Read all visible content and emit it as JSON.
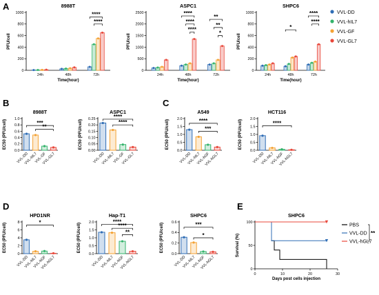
{
  "figure": {
    "panel_labels": [
      "A",
      "B",
      "C",
      "D",
      "E"
    ],
    "legend_a": [
      {
        "name": "VVL-DD",
        "color": "#2f6db5"
      },
      {
        "name": "VVL-hIL7",
        "color": "#33b36b"
      },
      {
        "name": "VVL-GF",
        "color": "#f4a233"
      },
      {
        "name": "VVL-GL7",
        "color": "#e8473a"
      }
    ]
  },
  "chart_data": [
    {
      "id": "A1",
      "panel": "A",
      "type": "bar",
      "title": "8988T",
      "xlabel": "Time(hour)",
      "ylabel": "PFU/cell",
      "categories": [
        "24h",
        "48h",
        "72h"
      ],
      "ylim": [
        0,
        1000
      ],
      "yticks": [
        0,
        200,
        400,
        600,
        800,
        1000
      ],
      "ytick_labels": [
        "0",
        "200",
        "400",
        "600",
        "800",
        "1000"
      ],
      "series": [
        {
          "name": "VVL-DD",
          "color": "#2f6db5",
          "values": [
            5,
            25,
            60
          ]
        },
        {
          "name": "VVL-hIL7",
          "color": "#33b36b",
          "values": [
            6,
            30,
            450
          ]
        },
        {
          "name": "VVL-GF",
          "color": "#f4a233",
          "values": [
            8,
            35,
            550
          ]
        },
        {
          "name": "VVL-GL7",
          "color": "#e8473a",
          "values": [
            10,
            50,
            650
          ]
        }
      ],
      "significance": [
        {
          "label": "****",
          "from": [
            2,
            0
          ],
          "to": [
            2,
            3
          ],
          "y": 920
        },
        {
          "label": "****",
          "from": [
            2,
            1
          ],
          "to": [
            2,
            3
          ],
          "y": 800
        }
      ]
    },
    {
      "id": "A2",
      "panel": "A",
      "type": "bar",
      "title": "ASPC1",
      "xlabel": "Time(hour)",
      "ylabel": "PFU/cell",
      "categories": [
        "24h",
        "48h",
        "72h"
      ],
      "ylim": [
        0,
        2500
      ],
      "yticks": [
        0,
        500,
        1000,
        1500,
        2000,
        2500
      ],
      "ytick_labels": [
        "0",
        "500",
        "1000",
        "1500",
        "2000",
        "2500"
      ],
      "series": [
        {
          "name": "VVL-DD",
          "color": "#2f6db5",
          "values": [
            100,
            200,
            250
          ]
        },
        {
          "name": "VVL-hIL7",
          "color": "#33b36b",
          "values": [
            120,
            250,
            300
          ]
        },
        {
          "name": "VVL-GF",
          "color": "#f4a233",
          "values": [
            150,
            300,
            450
          ]
        },
        {
          "name": "VVL-GL7",
          "color": "#e8473a",
          "values": [
            450,
            1350,
            1050
          ]
        }
      ],
      "significance": [
        {
          "label": "****",
          "from": [
            1,
            0
          ],
          "to": [
            1,
            3
          ],
          "y": 2350
        },
        {
          "label": "****",
          "from": [
            1,
            1
          ],
          "to": [
            1,
            3
          ],
          "y": 2000
        },
        {
          "label": "****",
          "from": [
            1,
            2
          ],
          "to": [
            1,
            3
          ],
          "y": 1650
        },
        {
          "label": "**",
          "from": [
            2,
            0
          ],
          "to": [
            2,
            3
          ],
          "y": 2200
        },
        {
          "label": "**",
          "from": [
            2,
            1
          ],
          "to": [
            2,
            3
          ],
          "y": 1850
        },
        {
          "label": "*",
          "from": [
            2,
            2
          ],
          "to": [
            2,
            3
          ],
          "y": 1500
        }
      ]
    },
    {
      "id": "A3",
      "panel": "A",
      "type": "bar",
      "title": "SHPC6",
      "xlabel": "Time(hour)",
      "ylabel": "PFU/cell",
      "categories": [
        "24h",
        "48h",
        "72h"
      ],
      "ylim": [
        0,
        1000
      ],
      "yticks": [
        0,
        200,
        400,
        600,
        800,
        1000
      ],
      "ytick_labels": [
        "0",
        "200",
        "400",
        "600",
        "800",
        "1000"
      ],
      "series": [
        {
          "name": "VVL-DD",
          "color": "#2f6db5",
          "values": [
            80,
            70,
            100
          ]
        },
        {
          "name": "VVL-hIL7",
          "color": "#33b36b",
          "values": [
            90,
            110,
            130
          ]
        },
        {
          "name": "VVL-GF",
          "color": "#f4a233",
          "values": [
            100,
            220,
            150
          ]
        },
        {
          "name": "VVL-GL7",
          "color": "#e8473a",
          "values": [
            120,
            240,
            450
          ]
        }
      ],
      "significance": [
        {
          "label": "*",
          "from": [
            1,
            0
          ],
          "to": [
            1,
            3
          ],
          "y": 700
        },
        {
          "label": "****",
          "from": [
            2,
            0
          ],
          "to": [
            2,
            3
          ],
          "y": 940
        },
        {
          "label": "****",
          "from": [
            2,
            1
          ],
          "to": [
            2,
            3
          ],
          "y": 800
        }
      ]
    },
    {
      "id": "B1",
      "panel": "B",
      "type": "bar",
      "title": "8988T",
      "xlabel": "",
      "ylabel": "EC50 (PFU/cell)",
      "categories": [
        "VVL-DD",
        "VVL-hIL7",
        "VVL-GF",
        "VVL-GL7"
      ],
      "colors": [
        "#2f6db5",
        "#f4a233",
        "#33b36b",
        "#e8473a"
      ],
      "ylim": [
        0,
        1.0
      ],
      "yticks": [
        0,
        0.2,
        0.4,
        0.6,
        0.8,
        1.0
      ],
      "ytick_labels": [
        "0.0",
        "0.2",
        "0.4",
        "0.6",
        "0.8",
        "1.0"
      ],
      "values": [
        0.52,
        0.48,
        0.13,
        0.09
      ],
      "significance": [
        {
          "label": "***",
          "from": 0,
          "to": 3,
          "y": 0.78
        },
        {
          "label": "**",
          "from": 1,
          "to": 3,
          "y": 0.66
        }
      ]
    },
    {
      "id": "B2",
      "panel": "B",
      "type": "bar",
      "title": "ASPC1",
      "xlabel": "",
      "ylabel": "EC50 (PFU/cell)",
      "categories": [
        "VVL-DD",
        "VVL-hIL7",
        "VVL-GF",
        "VVL-GL7"
      ],
      "colors": [
        "#2f6db5",
        "#f4a233",
        "#33b36b",
        "#e8473a"
      ],
      "ylim": [
        0,
        0.25
      ],
      "yticks": [
        0,
        0.05,
        0.1,
        0.15,
        0.2,
        0.25
      ],
      "ytick_labels": [
        "0.00",
        "0.05",
        "0.10",
        "0.15",
        "0.20",
        "0.25"
      ],
      "values": [
        0.215,
        0.16,
        0.045,
        0.025
      ],
      "significance": [
        {
          "label": "****",
          "from": 0,
          "to": 3,
          "y": 0.245
        },
        {
          "label": "****",
          "from": 1,
          "to": 3,
          "y": 0.2
        }
      ]
    },
    {
      "id": "C1",
      "panel": "C",
      "type": "bar",
      "title": "A549",
      "xlabel": "",
      "ylabel": "EC50 (PFU/cell)",
      "categories": [
        "VVL-DD",
        "VVL-hIL7",
        "VVL-hGF",
        "VVL-hGL7"
      ],
      "colors": [
        "#2f6db5",
        "#f4a233",
        "#33b36b",
        "#e8473a"
      ],
      "ylim": [
        0,
        2.0
      ],
      "yticks": [
        0,
        0.5,
        1.0,
        1.5,
        2.0
      ],
      "ytick_labels": [
        "0.0",
        "0.5",
        "1.0",
        "1.5",
        "2.0"
      ],
      "values": [
        1.3,
        0.85,
        0.35,
        0.2
      ],
      "significance": [
        {
          "label": "****",
          "from": 0,
          "to": 3,
          "y": 1.7
        },
        {
          "label": "***",
          "from": 1,
          "to": 3,
          "y": 1.2
        }
      ]
    },
    {
      "id": "C2",
      "panel": "C",
      "type": "bar",
      "title": "HCT116",
      "xlabel": "",
      "ylabel": "EC50 (PFU/cell)",
      "categories": [
        "VVL-DD",
        "VVL-hIL7",
        "VVL-hGF",
        "VVL-hGL7"
      ],
      "colors": [
        "#2f6db5",
        "#f4a233",
        "#33b36b",
        "#e8473a"
      ],
      "ylim": [
        0,
        2.0
      ],
      "yticks": [
        0,
        0.5,
        1.0,
        1.5,
        2.0
      ],
      "ytick_labels": [
        "0.0",
        "0.5",
        "1.0",
        "1.5",
        "2.0"
      ],
      "values": [
        0.92,
        0.15,
        0.06,
        0.03
      ],
      "significance": [
        {
          "label": "****",
          "from": 0,
          "to": 3,
          "y": 1.55
        }
      ]
    },
    {
      "id": "D1",
      "panel": "D",
      "type": "bar",
      "title": "HPD1NR",
      "xlabel": "",
      "ylabel": "EC50 (PFU/cell)",
      "categories": [
        "VVL-DD",
        "VVL-hIL7",
        "VVL-hGF",
        "VVL-hGL7"
      ],
      "colors": [
        "#2f6db5",
        "#f4a233",
        "#33b36b",
        "#e8473a"
      ],
      "ylim": [
        0,
        8
      ],
      "yticks": [
        0,
        2,
        4,
        6,
        8
      ],
      "ytick_labels": [
        "0",
        "2",
        "4",
        "6",
        "8"
      ],
      "values": [
        3.5,
        0.6,
        0.65,
        0.1
      ],
      "significance": [
        {
          "label": "*",
          "from": 0,
          "to": 3,
          "y": 7.2
        }
      ]
    },
    {
      "id": "D2",
      "panel": "D",
      "type": "bar",
      "title": "Hap-T1",
      "xlabel": "",
      "ylabel": "EC50 (PFU/cell)",
      "categories": [
        "VVL-DD",
        "VVL-hIL7",
        "VVL-hGF",
        "VVL-hGL7"
      ],
      "colors": [
        "#2f6db5",
        "#f4a233",
        "#33b36b",
        "#e8473a"
      ],
      "ylim": [
        0,
        2.0
      ],
      "yticks": [
        0,
        0.5,
        1.0,
        1.5,
        2.0
      ],
      "ytick_labels": [
        "0.0",
        "0.5",
        "1.0",
        "1.5",
        "2.0"
      ],
      "values": [
        1.35,
        1.32,
        0.78,
        0.15
      ],
      "significance": [
        {
          "label": "****",
          "from": 0,
          "to": 3,
          "y": 1.85
        },
        {
          "label": "****",
          "from": 1,
          "to": 3,
          "y": 1.6
        },
        {
          "label": "**",
          "from": 2,
          "to": 3,
          "y": 1.2
        }
      ]
    },
    {
      "id": "D3",
      "panel": "D",
      "type": "bar",
      "title": "SHPC6",
      "xlabel": "",
      "ylabel": "EC50 (PFU/cell)",
      "categories": [
        "VVL-DD",
        "VVL-hIL7",
        "VVL-hGF",
        "VVL-hGL7"
      ],
      "colors": [
        "#2f6db5",
        "#f4a233",
        "#33b36b",
        "#e8473a"
      ],
      "ylim": [
        0,
        0.6
      ],
      "yticks": [
        0,
        0.2,
        0.4,
        0.6
      ],
      "ytick_labels": [
        "0.0",
        "0.2",
        "0.4",
        "0.6"
      ],
      "values": [
        0.31,
        0.21,
        0.04,
        0.035
      ],
      "significance": [
        {
          "label": "***",
          "from": 0,
          "to": 3,
          "y": 0.5
        },
        {
          "label": "*",
          "from": 1,
          "to": 3,
          "y": 0.3
        }
      ]
    },
    {
      "id": "E",
      "panel": "E",
      "type": "line",
      "title": "SHPC6",
      "xlabel": "Days post cells injection",
      "ylabel": "Survival (%)",
      "xlim": [
        0,
        30
      ],
      "xticks": [
        0,
        10,
        20,
        30
      ],
      "ylim": [
        0,
        100
      ],
      "yticks": [
        0,
        50,
        100
      ],
      "series": [
        {
          "name": "PBS",
          "color": "#000000",
          "steps": [
            [
              0,
              100
            ],
            [
              6,
              100
            ],
            [
              6,
              60
            ],
            [
              7,
              60
            ],
            [
              7,
              40
            ],
            [
              9,
              40
            ],
            [
              9,
              20
            ],
            [
              26,
              20
            ],
            [
              26,
              0
            ]
          ]
        },
        {
          "name": "VVL-DD",
          "color": "#2f6db5",
          "steps": [
            [
              0,
              100
            ],
            [
              6,
              100
            ],
            [
              6,
              60
            ],
            [
              26,
              60
            ]
          ]
        },
        {
          "name": "VVL-hGL7",
          "color": "#e8473a",
          "steps": [
            [
              0,
              100
            ],
            [
              26,
              100
            ]
          ]
        }
      ],
      "significance": [
        {
          "label": "**"
        }
      ]
    }
  ]
}
